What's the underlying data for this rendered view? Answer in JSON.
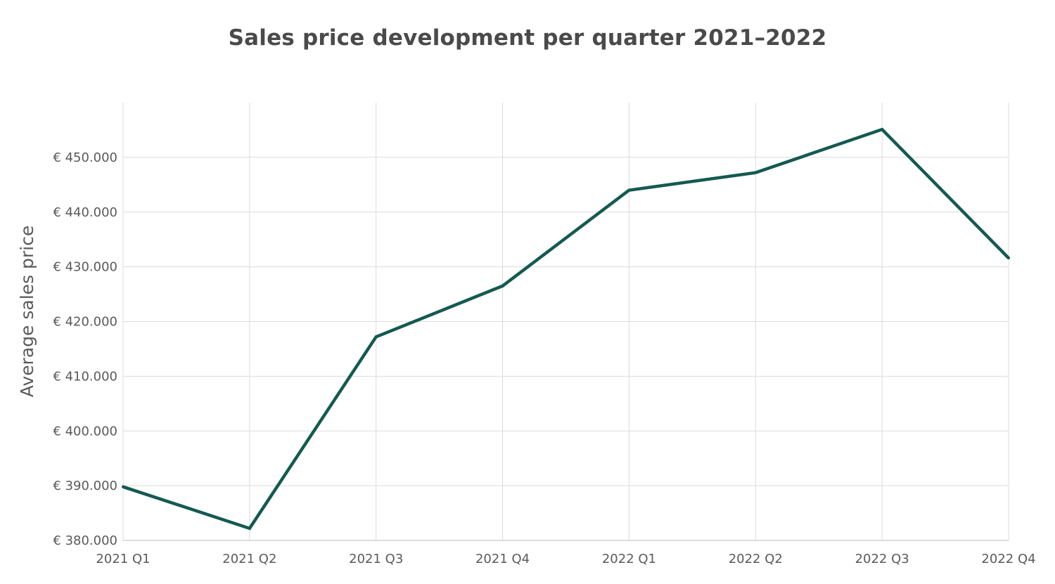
{
  "chart_data": {
    "type": "line",
    "title": "Sales price development per quarter 2021–2022",
    "xlabel": "",
    "ylabel": "Average sales price",
    "categories": [
      "2021 Q1",
      "2021 Q2",
      "2021 Q3",
      "2021 Q4",
      "2022 Q1",
      "2022 Q2",
      "2022 Q3",
      "2022 Q4"
    ],
    "series": [
      {
        "values": [
          389800,
          382200,
          417200,
          426500,
          444000,
          447200,
          455100,
          431600
        ],
        "color": "#145a50"
      }
    ],
    "ylim": [
      380000,
      460000
    ],
    "yticks": [
      380000,
      390000,
      400000,
      410000,
      420000,
      430000,
      440000,
      450000
    ],
    "ytick_labels": [
      "€ 380.000",
      "€ 390.000",
      "€ 400.000",
      "€ 410.000",
      "€ 420.000",
      "€ 430.000",
      "€ 440.000",
      "€ 450.000"
    ],
    "grid": true,
    "legend": "none"
  }
}
